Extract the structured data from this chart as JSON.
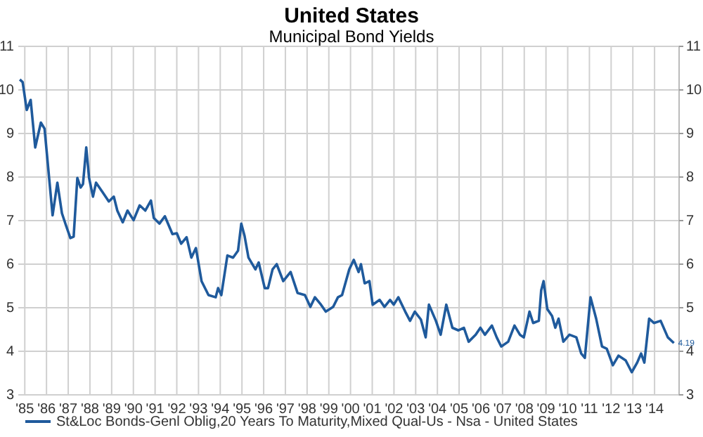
{
  "chart_data": {
    "type": "line",
    "title": "United States",
    "subtitle": "Municipal Bond Yields",
    "x": [
      1984.77,
      1984.9,
      1985.09,
      1985.27,
      1985.48,
      1985.74,
      1985.91,
      1986.02,
      1986.28,
      1986.5,
      1986.71,
      1986.89,
      1987.1,
      1987.25,
      1987.42,
      1987.57,
      1987.68,
      1987.83,
      1987.96,
      1988.14,
      1988.28,
      1988.57,
      1988.87,
      1989.1,
      1989.26,
      1989.51,
      1989.73,
      1990.01,
      1990.29,
      1990.55,
      1990.81,
      1990.94,
      1991.2,
      1991.45,
      1991.8,
      1992.0,
      1992.2,
      1992.45,
      1992.67,
      1992.88,
      1993.14,
      1993.46,
      1993.79,
      1993.9,
      1994.05,
      1994.33,
      1994.59,
      1994.82,
      1994.97,
      1995.12,
      1995.3,
      1995.62,
      1995.77,
      1996.05,
      1996.2,
      1996.41,
      1996.6,
      1996.9,
      1997.24,
      1997.56,
      1997.9,
      1998.15,
      1998.36,
      1998.64,
      1998.86,
      1999.2,
      1999.42,
      1999.61,
      1999.94,
      2000.15,
      2000.37,
      2000.48,
      2000.65,
      2000.87,
      2001.02,
      2001.34,
      2001.56,
      2001.82,
      2001.99,
      2002.2,
      2002.52,
      2002.74,
      2002.96,
      2003.24,
      2003.46,
      2003.61,
      2003.93,
      2004.15,
      2004.41,
      2004.69,
      2004.97,
      2005.22,
      2005.44,
      2005.76,
      2005.98,
      2006.19,
      2006.51,
      2006.73,
      2006.94,
      2007.26,
      2007.55,
      2007.8,
      2007.98,
      2008.24,
      2008.41,
      2008.67,
      2008.78,
      2008.89,
      2009.06,
      2009.28,
      2009.43,
      2009.58,
      2009.8,
      2010.08,
      2010.4,
      2010.62,
      2010.79,
      2011.05,
      2011.31,
      2011.58,
      2011.8,
      2012.08,
      2012.34,
      2012.67,
      2012.95,
      2013.2,
      2013.38,
      2013.53,
      2013.75,
      2013.97,
      2014.28,
      2014.61,
      2014.89
    ],
    "series": [
      {
        "name": "St&Loc Bonds-Genl Oblig,20 Years To Maturity,Mixed Qual-Us - Nsa - United States",
        "color": "#1f5a9c",
        "values": [
          10.24,
          10.18,
          9.54,
          9.77,
          8.68,
          9.25,
          9.11,
          8.52,
          7.12,
          7.87,
          7.17,
          6.9,
          6.6,
          6.63,
          7.98,
          7.76,
          7.84,
          8.68,
          7.98,
          7.55,
          7.87,
          7.66,
          7.44,
          7.55,
          7.23,
          6.96,
          7.23,
          7.01,
          7.35,
          7.23,
          7.46,
          7.06,
          6.93,
          7.1,
          6.69,
          6.71,
          6.47,
          6.62,
          6.15,
          6.37,
          5.61,
          5.29,
          5.24,
          5.45,
          5.29,
          6.2,
          6.15,
          6.31,
          6.93,
          6.65,
          6.15,
          5.88,
          6.04,
          5.45,
          5.45,
          5.88,
          6.0,
          5.61,
          5.82,
          5.34,
          5.29,
          5.02,
          5.24,
          5.07,
          4.91,
          5.02,
          5.24,
          5.29,
          5.88,
          6.1,
          5.82,
          6.0,
          5.56,
          5.61,
          5.07,
          5.18,
          5.02,
          5.18,
          5.07,
          5.24,
          4.91,
          4.7,
          4.91,
          4.73,
          4.32,
          5.07,
          4.7,
          4.38,
          5.07,
          4.54,
          4.48,
          4.54,
          4.22,
          4.38,
          4.54,
          4.38,
          4.59,
          4.32,
          4.11,
          4.22,
          4.59,
          4.38,
          4.32,
          4.91,
          4.65,
          4.7,
          5.4,
          5.61,
          4.97,
          4.81,
          4.54,
          4.75,
          4.22,
          4.38,
          4.32,
          3.95,
          3.85,
          5.24,
          4.75,
          4.11,
          4.06,
          3.68,
          3.9,
          3.79,
          3.52,
          3.74,
          3.95,
          3.74,
          4.75,
          4.65,
          4.7,
          4.32,
          4.19
        ]
      }
    ],
    "annotations": [
      {
        "text": "4.19",
        "x": 2014.89,
        "y": 4.19
      }
    ],
    "xlim": [
      1984.7,
      2015.13
    ],
    "xticks": [
      {
        "value": 1985,
        "label": "'85"
      },
      {
        "value": 1986,
        "label": "'86"
      },
      {
        "value": 1987,
        "label": "'87"
      },
      {
        "value": 1988,
        "label": "'88"
      },
      {
        "value": 1989,
        "label": "'89"
      },
      {
        "value": 1990,
        "label": "'90"
      },
      {
        "value": 1991,
        "label": "'91"
      },
      {
        "value": 1992,
        "label": "'92"
      },
      {
        "value": 1993,
        "label": "'93"
      },
      {
        "value": 1994,
        "label": "'94"
      },
      {
        "value": 1995,
        "label": "'95"
      },
      {
        "value": 1996,
        "label": "'96"
      },
      {
        "value": 1997,
        "label": "'97"
      },
      {
        "value": 1998,
        "label": "'98"
      },
      {
        "value": 1999,
        "label": "'99"
      },
      {
        "value": 2000,
        "label": "'00"
      },
      {
        "value": 2001,
        "label": "'01"
      },
      {
        "value": 2002,
        "label": "'02"
      },
      {
        "value": 2003,
        "label": "'03"
      },
      {
        "value": 2004,
        "label": "'04"
      },
      {
        "value": 2005,
        "label": "'05"
      },
      {
        "value": 2006,
        "label": "'06"
      },
      {
        "value": 2007,
        "label": "'07"
      },
      {
        "value": 2008,
        "label": "'08"
      },
      {
        "value": 2009,
        "label": "'09"
      },
      {
        "value": 2010,
        "label": "'10"
      },
      {
        "value": 2011,
        "label": "'11"
      },
      {
        "value": 2012,
        "label": "'12"
      },
      {
        "value": 2013,
        "label": "'13"
      },
      {
        "value": 2014,
        "label": "'14"
      }
    ],
    "ylim": [
      3,
      11
    ],
    "yticks": [
      3,
      4,
      5,
      6,
      7,
      8,
      9,
      10,
      11
    ],
    "y2lim": [
      3,
      11
    ],
    "y2ticks": [
      3,
      4,
      5,
      6,
      7,
      8,
      9,
      10,
      11
    ],
    "grid": true,
    "legend": "bottom left",
    "line_style": "solid",
    "marker": "none"
  }
}
